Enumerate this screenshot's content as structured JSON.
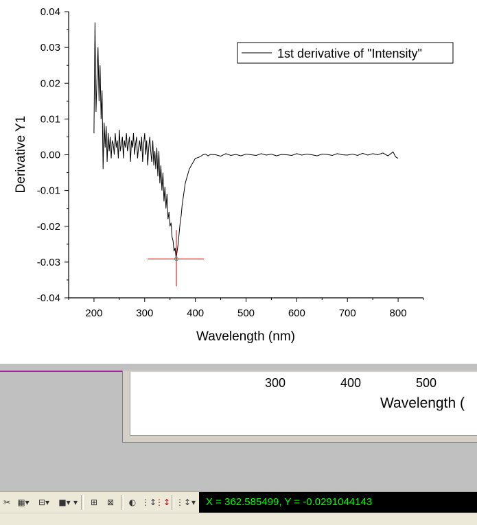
{
  "chart_data": {
    "type": "line",
    "xlabel": "Wavelength (nm)",
    "ylabel": "Derivative Y1",
    "xlim": [
      150,
      850
    ],
    "ylim": [
      -0.04,
      0.04
    ],
    "x_ticks": [
      "200",
      "300",
      "400",
      "500",
      "600",
      "700",
      "800"
    ],
    "y_ticks": [
      "0.04",
      "0.03",
      "0.02",
      "0.01",
      "0.00",
      "-0.01",
      "-0.02",
      "-0.03",
      "-0.04"
    ],
    "grid": false,
    "legend_position": "top-right",
    "series": [
      {
        "name": "1st derivative of \"Intensity\"",
        "color": "#000000",
        "x": [
          200,
          202,
          204,
          206,
          208,
          210,
          212,
          214,
          216,
          218,
          220,
          222,
          224,
          226,
          228,
          230,
          232,
          234,
          236,
          238,
          240,
          242,
          244,
          246,
          248,
          250,
          252,
          254,
          256,
          258,
          260,
          262,
          264,
          266,
          268,
          270,
          272,
          274,
          276,
          278,
          280,
          282,
          284,
          286,
          288,
          290,
          292,
          294,
          296,
          298,
          300,
          302,
          304,
          306,
          308,
          310,
          312,
          314,
          316,
          318,
          320,
          322,
          324,
          326,
          328,
          330,
          332,
          334,
          336,
          338,
          340,
          342,
          344,
          346,
          348,
          350,
          352,
          354,
          356,
          358,
          360,
          362,
          364,
          366,
          368,
          370,
          372,
          374,
          376,
          378,
          380,
          382,
          384,
          386,
          388,
          390,
          392,
          394,
          396,
          398,
          400,
          405,
          410,
          415,
          420,
          425,
          430,
          440,
          450,
          460,
          470,
          480,
          490,
          500,
          510,
          520,
          530,
          540,
          550,
          560,
          570,
          580,
          590,
          600,
          610,
          620,
          630,
          640,
          650,
          660,
          670,
          680,
          690,
          700,
          710,
          720,
          730,
          740,
          750,
          760,
          770,
          780,
          790,
          795,
          800
        ],
        "y": [
          0.006,
          0.037,
          0.012,
          0.022,
          0.03,
          0.015,
          0.025,
          0.01,
          0.018,
          -0.004,
          0.009,
          0.002,
          0.008,
          -0.002,
          0.006,
          0.001,
          0.005,
          -0.001,
          0.004,
          0.003,
          0.0,
          0.006,
          0.002,
          0.004,
          -0.001,
          0.007,
          0.001,
          0.003,
          0.005,
          -0.001,
          0.004,
          0.002,
          0.006,
          0.001,
          0.003,
          0.005,
          -0.002,
          0.004,
          0.002,
          0.006,
          0.0,
          0.003,
          0.005,
          -0.001,
          0.002,
          0.004,
          0.001,
          0.005,
          -0.002,
          0.003,
          0.006,
          0.0,
          0.004,
          -0.003,
          0.002,
          0.005,
          0.001,
          -0.002,
          0.004,
          -0.003,
          0.001,
          -0.004,
          0.002,
          -0.006,
          0.001,
          -0.008,
          -0.003,
          -0.01,
          -0.005,
          -0.013,
          -0.009,
          -0.015,
          -0.011,
          -0.018,
          -0.016,
          -0.02,
          -0.019,
          -0.023,
          -0.024,
          -0.027,
          -0.026,
          -0.029,
          -0.027,
          -0.025,
          -0.022,
          -0.019,
          -0.017,
          -0.014,
          -0.012,
          -0.01,
          -0.008,
          -0.007,
          -0.006,
          -0.005,
          -0.004,
          -0.0035,
          -0.003,
          -0.0025,
          -0.002,
          -0.0015,
          -0.001,
          -0.0008,
          -0.0005,
          0.0,
          0.0002,
          -0.0003,
          0.0001,
          0.0,
          -0.0004,
          0.0003,
          -0.0002,
          0.0001,
          -0.0003,
          0.0002,
          0.0,
          -0.0002,
          0.0003,
          -0.0001,
          0.0002,
          -0.0003,
          0.0001,
          0.0,
          -0.0002,
          0.0003,
          -0.0001,
          0.0002,
          0.0,
          -0.0003,
          0.0002,
          0.0001,
          -0.0002,
          0.0003,
          0.0,
          -0.0001,
          0.0002,
          -0.0002,
          0.0004,
          -0.0001,
          0.0003,
          0.0,
          0.0005,
          -0.0003,
          0.0008,
          -0.0006,
          -0.001
        ]
      }
    ],
    "marker": {
      "x": 362.585499,
      "y": -0.0291044143,
      "color": "#cc0000"
    }
  },
  "back_window": {
    "ticks": [
      "300",
      "400",
      "500"
    ],
    "xlabel": "Wavelength ("
  },
  "status": {
    "readout": "X = 362.585499, Y = -0.0291044143"
  },
  "toolbar": {
    "items": [
      "scissors-icon",
      "grid-icon",
      "frame-icon",
      "square-icon",
      "reader-icon",
      "tool-icon",
      "mask-icon",
      "data-select-icon",
      "data-reader-icon",
      "scale-icon"
    ]
  }
}
